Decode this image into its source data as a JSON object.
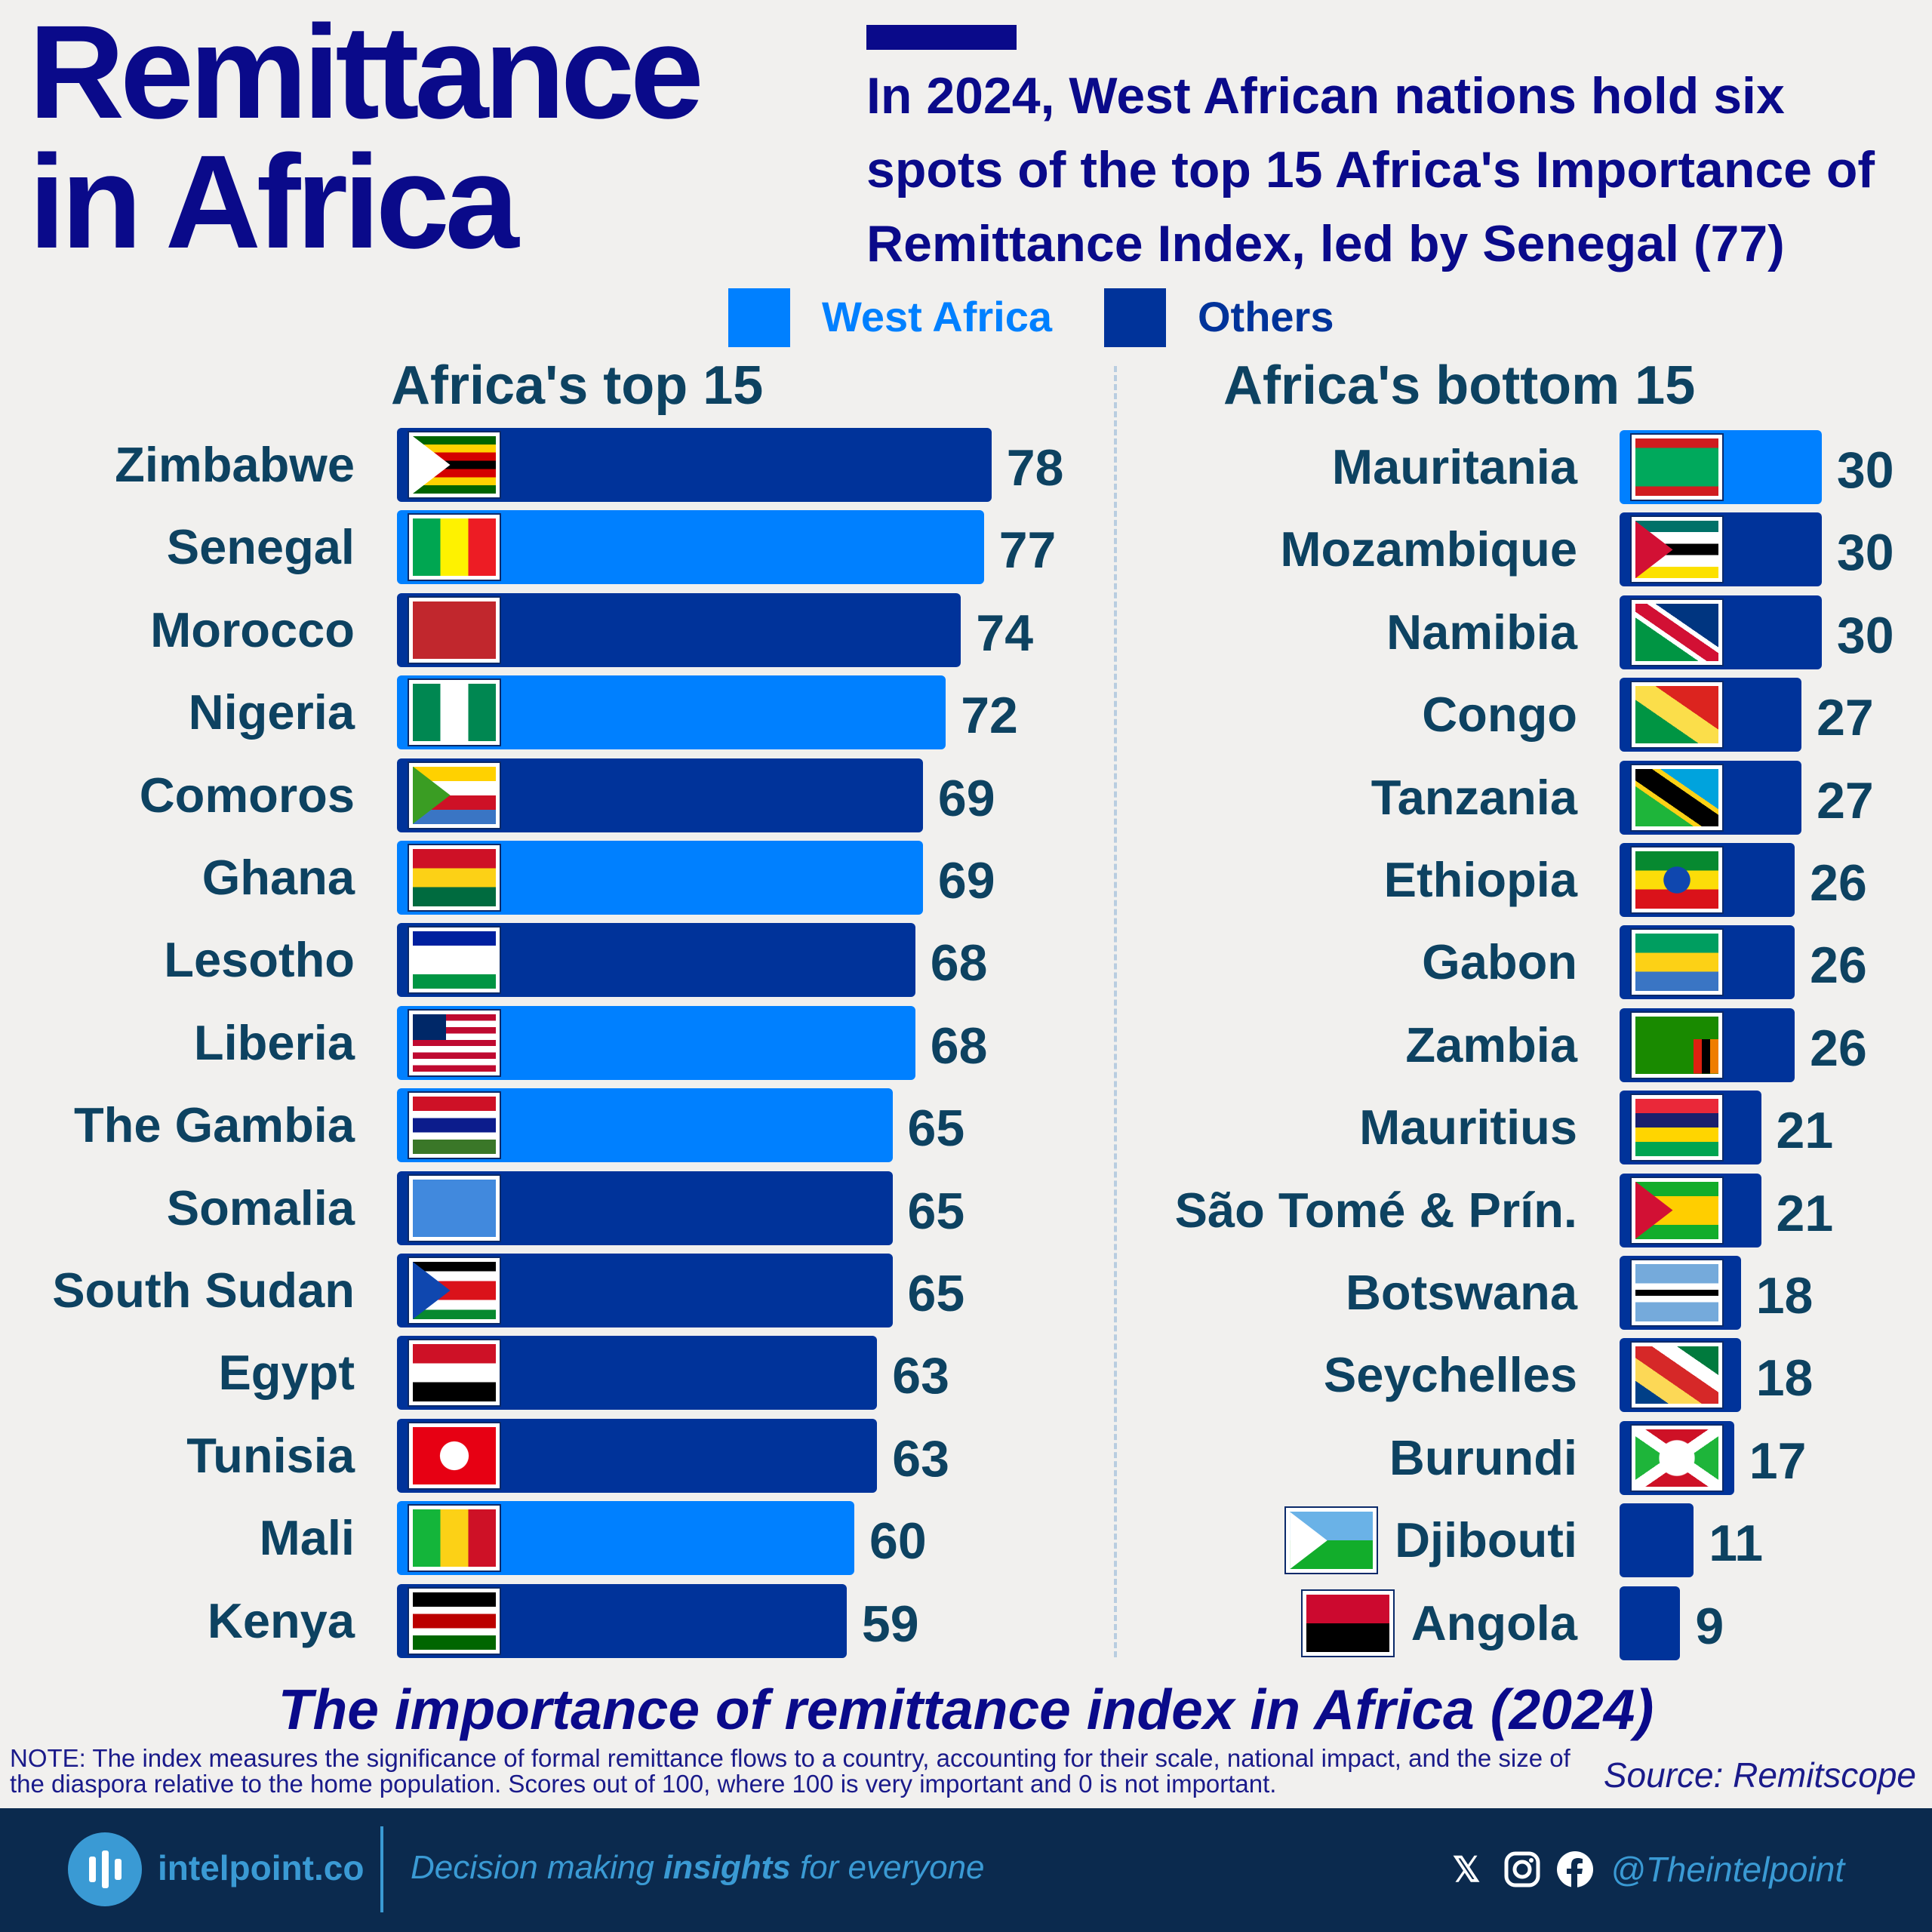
{
  "title": [
    "Remittance",
    "in Africa"
  ],
  "subtitle": "In 2024, West African nations hold six spots of the top 15 Africa's Importance of Remittance Index, led by Senegal (77)",
  "colors": {
    "west_africa": "#0080ff",
    "others": "#00339a",
    "title": "#0a0a8a",
    "label": "#0d4261",
    "footer_bg": "#0b2a4e",
    "footer_accent": "#3a9ad4"
  },
  "legend": [
    {
      "label": "West Africa",
      "color": "#0080ff"
    },
    {
      "label": "Others",
      "color": "#00339a"
    }
  ],
  "chart_data": [
    {
      "type": "bar",
      "orientation": "horizontal",
      "title": "Africa's top 15",
      "categories": [
        "Zimbabwe",
        "Senegal",
        "Morocco",
        "Nigeria",
        "Comoros",
        "Ghana",
        "Lesotho",
        "Liberia",
        "The Gambia",
        "Somalia",
        "South Sudan",
        "Egypt",
        "Tunisia",
        "Mali",
        "Kenya"
      ],
      "values": [
        78,
        77,
        74,
        72,
        69,
        69,
        68,
        68,
        65,
        65,
        65,
        63,
        63,
        60,
        59
      ],
      "group": [
        "Others",
        "West Africa",
        "Others",
        "West Africa",
        "Others",
        "West Africa",
        "Others",
        "West Africa",
        "West Africa",
        "Others",
        "Others",
        "Others",
        "Others",
        "West Africa",
        "Others"
      ],
      "data_labels": true
    },
    {
      "type": "bar",
      "orientation": "horizontal",
      "title": "Africa's bottom 15",
      "categories": [
        "Mauritania",
        "Mozambique",
        "Namibia",
        "Congo",
        "Tanzania",
        "Ethiopia",
        "Gabon",
        "Zambia",
        "Mauritius",
        "São Tomé & Prín.",
        "Botswana",
        "Seychelles",
        "Burundi",
        "Djibouti",
        "Angola"
      ],
      "values": [
        30,
        30,
        30,
        27,
        27,
        26,
        26,
        26,
        21,
        21,
        18,
        18,
        17,
        11,
        9
      ],
      "group": [
        "West Africa",
        "Others",
        "Others",
        "Others",
        "Others",
        "Others",
        "Others",
        "Others",
        "Others",
        "Others",
        "Others",
        "Others",
        "Others",
        "Others",
        "Others"
      ],
      "data_labels": true
    }
  ],
  "caption": "The importance of remittance index in Africa (2024)",
  "note": "NOTE: The index measures the significance of formal remittance flows to a country, accounting for their scale, national impact, and the size of the diaspora relative to the home population. Scores out of 100, where 100 is very important and 0 is not important.",
  "source": "Source: Remitscope",
  "footer": {
    "brand": "intelpoint.co",
    "tagline_pre": "Decision making ",
    "tagline_bold": "insights",
    "tagline_post": " for everyone",
    "social_icons": [
      "x-icon",
      "instagram-icon",
      "facebook-icon"
    ],
    "handle": "@Theintelpoint"
  }
}
